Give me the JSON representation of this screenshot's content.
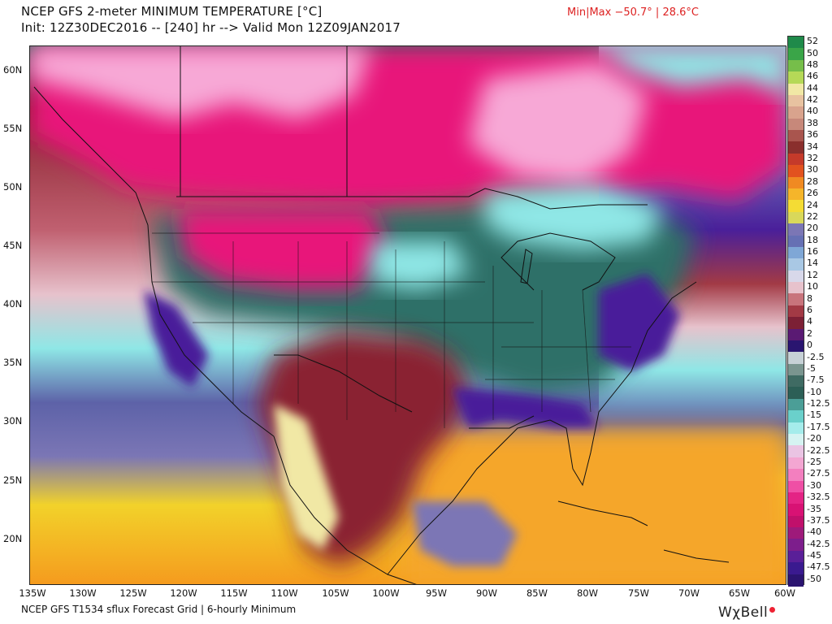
{
  "header": {
    "title_line1": "NCEP GFS 2-meter MINIMUM TEMPERATURE [°C]",
    "title_line2": "Init: 12Z30DEC2016 -- [240] hr --> Valid Mon 12Z09JAN2017",
    "minmax": "Min|Max −50.7° | 28.6°C"
  },
  "map": {
    "lat_labels": [
      "60N",
      "55N",
      "50N",
      "45N",
      "40N",
      "35N",
      "30N",
      "25N",
      "20N"
    ],
    "lon_labels": [
      "135W",
      "130W",
      "125W",
      "120W",
      "115W",
      "110W",
      "105W",
      "100W",
      "95W",
      "90W",
      "85W",
      "80W",
      "75W",
      "70W",
      "65W",
      "60W"
    ],
    "colors": {
      "arctic_magenta": "#e8127a",
      "very_cold_pink": "#f7a8d6",
      "cold_cyan": "#8fe7e6",
      "cool_teal": "#2f6f67",
      "freezing_purple": "#4a1f9a",
      "mild_maroon": "#8a2230",
      "warm_yellow": "#f2d22a",
      "hot_orange": "#f59a1e",
      "ocean_blue": "#5d62a8"
    }
  },
  "legend": {
    "labels": [
      "52",
      "50",
      "48",
      "46",
      "44",
      "42",
      "40",
      "38",
      "36",
      "34",
      "32",
      "30",
      "28",
      "26",
      "24",
      "22",
      "20",
      "18",
      "16",
      "14",
      "12",
      "10",
      "8",
      "6",
      "4",
      "2",
      "0",
      "-2.5",
      "-5",
      "-7.5",
      "-10",
      "-12.5",
      "-15",
      "-17.5",
      "-20",
      "-22.5",
      "-25",
      "-27.5",
      "-30",
      "-32.5",
      "-35",
      "-37.5",
      "-40",
      "-42.5",
      "-45",
      "-47.5",
      "-50"
    ],
    "colors": [
      "#1f8a4a",
      "#3aa548",
      "#76be4a",
      "#b5d957",
      "#f1e8a5",
      "#e8c2a0",
      "#d9a38d",
      "#c7887a",
      "#a9554e",
      "#8a2f2d",
      "#c53a2a",
      "#e2521f",
      "#f08a22",
      "#f5b52a",
      "#f4dc34",
      "#d9d85a",
      "#7b76b5",
      "#6670b4",
      "#7fa7d6",
      "#a9c8e4",
      "#d8d8ea",
      "#e7c2cc",
      "#c8747c",
      "#a23a45",
      "#7c2035",
      "#5a1a73",
      "#2a1570",
      "#c7d1d6",
      "#7a958f",
      "#3f6b63",
      "#2c5f56",
      "#4b9e97",
      "#6ad0cb",
      "#a5eceb",
      "#d6f3f2",
      "#eac4e3",
      "#f3a6d2",
      "#f37fbf",
      "#ef4fa5",
      "#e42485",
      "#d81274",
      "#c0106b",
      "#9e1a7a",
      "#7d1e8c",
      "#5a1f98",
      "#3a1a8f",
      "#2b1470"
    ]
  },
  "footer": {
    "text": "NCEP GFS T1534 sflux Forecast Grid | 6-hourly Minimum",
    "logo": "WχBell"
  }
}
